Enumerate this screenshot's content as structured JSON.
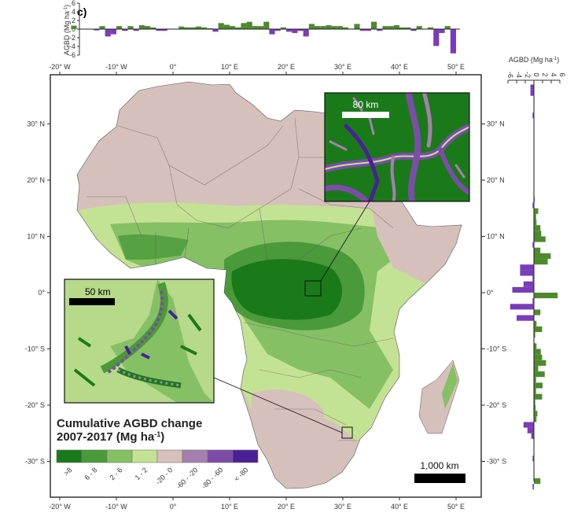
{
  "panel_label": "c)",
  "colors": {
    "land": "#d6c0bc",
    "gain_strong": "#1a7a1a",
    "gain_med": "#4a9a3a",
    "gain_low": "#86c065",
    "gain_min": "#c4e294",
    "loss_min": "#a67fb0",
    "loss_med": "#7d4ca8",
    "loss_strong": "#4a1f98",
    "bar_pos": "#4d8a2e",
    "bar_neg": "#7a3cb8"
  },
  "map": {
    "lon_ticks": [
      "-20° W",
      "-10° W",
      "0°",
      "10° E",
      "20° E",
      "30° E",
      "40° E",
      "50° E"
    ],
    "lat_ticks_left": [
      "30° N",
      "20° N",
      "10° N",
      "0°",
      "-10° S",
      "-20° S",
      "-30° S"
    ],
    "lat_ticks_right": [
      "30° N",
      "20° N",
      "10° N",
      "0°",
      "-10° S",
      "-20° S",
      "-30° S"
    ],
    "legend": {
      "title_line1": "Cumulative AGBD change",
      "title_line2": "2007-2017 (Mg ha",
      "title_sup": "-1",
      "title_end": ")",
      "classes": [
        ">8",
        "6 - 8",
        "2 - 6",
        "1 - 2",
        "-20 - 0",
        "-60 - -20",
        "-80 - -60",
        "< -80"
      ]
    },
    "scale_bar": "1,000 km",
    "inset_upper": {
      "scale_bar": "80 km"
    },
    "inset_lower": {
      "scale_bar": "50 km"
    }
  },
  "chart_data": [
    {
      "type": "bar",
      "name": "longitude-profile",
      "ylabel": "AGBD (Mg ha-1)",
      "ylabel_main": "AGBD (Mg ha",
      "ylabel_sup": "-1",
      "ylabel_end": ")",
      "yticks": [
        "6",
        "4",
        "2",
        "0",
        "-2",
        "-4",
        "-6"
      ],
      "ylim": [
        -6,
        6
      ],
      "x_start": -17,
      "x_step": 1,
      "values": [
        0.8,
        0.1,
        0.1,
        0.1,
        -0.3,
        0.7,
        -1.7,
        -1.2,
        0.7,
        -0.4,
        0.7,
        -0.4,
        0.9,
        0.7,
        0.4,
        -0.4,
        -0.4,
        0.1,
        0.1,
        0.6,
        0.4,
        0.4,
        0.6,
        0.4,
        0.2,
        -0.6,
        1.4,
        1.0,
        0.7,
        0.4,
        1.4,
        1.7,
        0.7,
        0.7,
        1.7,
        -1.2,
        -0.4,
        0.4,
        -0.6,
        -0.9,
        -0.4,
        -1.7,
        1.2,
        0.7,
        0.7,
        0.9,
        0.7,
        0.7,
        0.4,
        0.1,
        1.2,
        -0.4,
        -0.4,
        1.7,
        -0.4,
        0.7,
        0.7,
        0.9,
        0.4,
        0.4,
        -0.4,
        0.7,
        0.1,
        0.4,
        -3.9,
        -0.9,
        0.7,
        -5.6
      ]
    },
    {
      "type": "bar",
      "name": "latitude-profile",
      "xlabel": "AGBD (Mg ha-1)",
      "xlabel_main": "AGBD (Mg ha",
      "xlabel_sup": "-1",
      "xlabel_end": ")",
      "xticks": [
        "-6",
        "-4",
        "-2",
        "0",
        "2",
        "4",
        "6"
      ],
      "xlim": [
        -6,
        6
      ],
      "lat_start": 37,
      "lat_step": -1,
      "values": [
        -0.8,
        -0.8,
        0,
        0,
        0.1,
        -0.3,
        0.1,
        0.1,
        0.05,
        0.05,
        0.05,
        0.05,
        0.05,
        0.05,
        0.05,
        0.05,
        0.05,
        0.05,
        0.05,
        0.05,
        0.2,
        -0.3,
        1.0,
        0.5,
        0.6,
        1.5,
        1.7,
        2.7,
        -0.3,
        1.5,
        3.9,
        3.2,
        -3.2,
        -3.2,
        -0.3,
        -2.4,
        -5.0,
        5.5,
        -0.3,
        -5.5,
        1.5,
        -4.0,
        0.6,
        1.9,
        0.3,
        0.1,
        0.6,
        1.6,
        1.9,
        2.8,
        1.0,
        2.5,
        0.5,
        2.0,
        0.5,
        1.9,
        0.3,
        0.4,
        0.8,
        0.6,
        -2.4,
        -1.5,
        -0.6,
        0.1,
        0.1,
        0.1,
        -0.3,
        0.1,
        0.1,
        0.1,
        1.5,
        -0.3
      ]
    }
  ]
}
